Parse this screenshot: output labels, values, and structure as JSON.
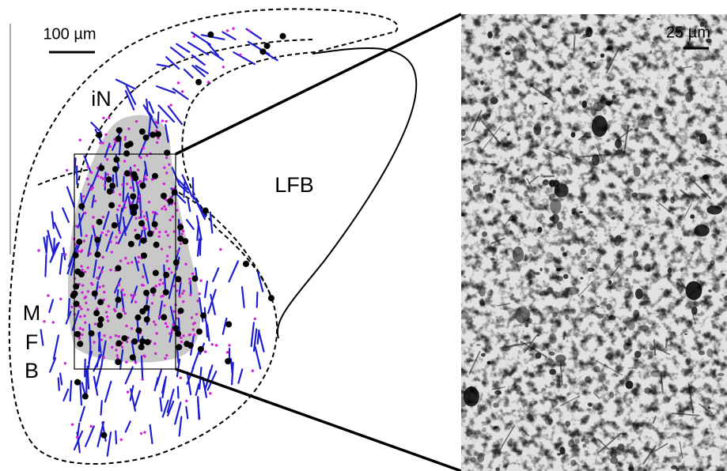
{
  "left_panel": {
    "scale_label": "100 µm",
    "labels": {
      "inner_nucleus": "iN",
      "lfb": "LFB",
      "mfb": [
        "M",
        "F",
        "B"
      ]
    }
  },
  "right_panel": {
    "scale_label": "25 µm"
  }
}
